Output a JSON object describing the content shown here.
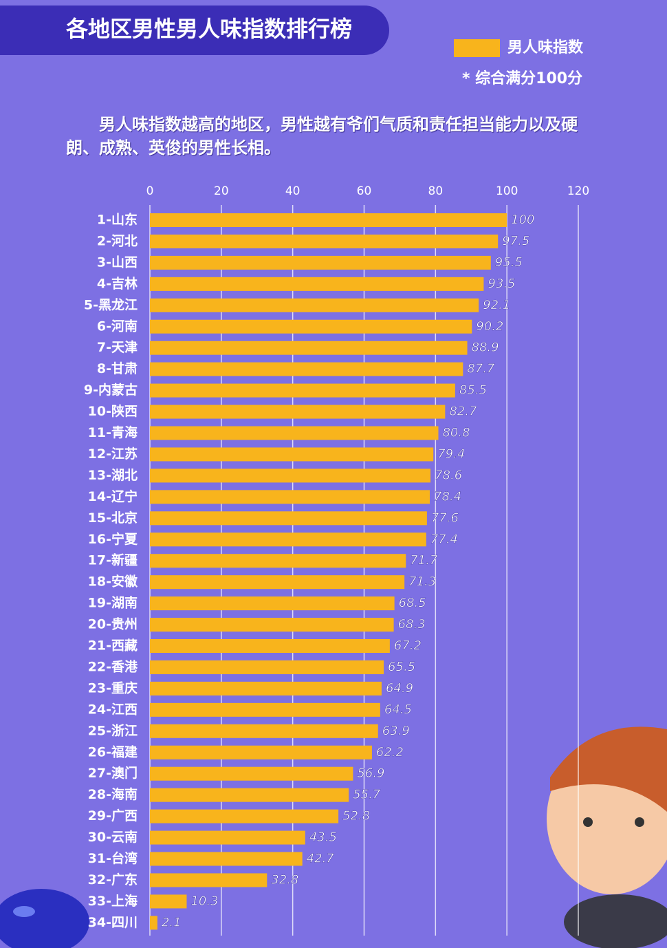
{
  "chart_data": {
    "type": "bar",
    "orientation": "horizontal",
    "title": "各地区男性男人味指数排行榜",
    "note": "* 综合满分100分",
    "subtitle": "男人味指数越高的地区，男性越有爷们气质和责任担当能力以及硬朗、成熟、英俊的男性长相。",
    "categories": [
      "1-山东",
      "2-河北",
      "3-山西",
      "4-吉林",
      "5-黑龙江",
      "6-河南",
      "7-天津",
      "8-甘肃",
      "9-内蒙古",
      "10-陕西",
      "11-青海",
      "12-江苏",
      "13-湖北",
      "14-辽宁",
      "15-北京",
      "16-宁夏",
      "17-新疆",
      "18-安徽",
      "19-湖南",
      "20-贵州",
      "21-西藏",
      "22-香港",
      "23-重庆",
      "24-江西",
      "25-浙江",
      "26-福建",
      "27-澳门",
      "28-海南",
      "29-广西",
      "30-云南",
      "31-台湾",
      "32-广东",
      "33-上海",
      "34-四川"
    ],
    "series": [
      {
        "name": "男人味指数",
        "color": "#f8b41c",
        "values": [
          100,
          97.5,
          95.5,
          93.5,
          92.1,
          90.2,
          88.9,
          87.7,
          85.5,
          82.7,
          80.8,
          79.4,
          78.6,
          78.4,
          77.6,
          77.4,
          71.7,
          71.3,
          68.5,
          68.3,
          67.2,
          65.5,
          64.9,
          64.5,
          63.9,
          62.2,
          56.9,
          55.7,
          52.8,
          43.5,
          42.7,
          32.8,
          10.3,
          2.1
        ]
      }
    ],
    "xlim": [
      0,
      120
    ],
    "xticks": [
      0,
      20,
      40,
      60,
      80,
      100,
      120
    ],
    "grid": true
  }
}
